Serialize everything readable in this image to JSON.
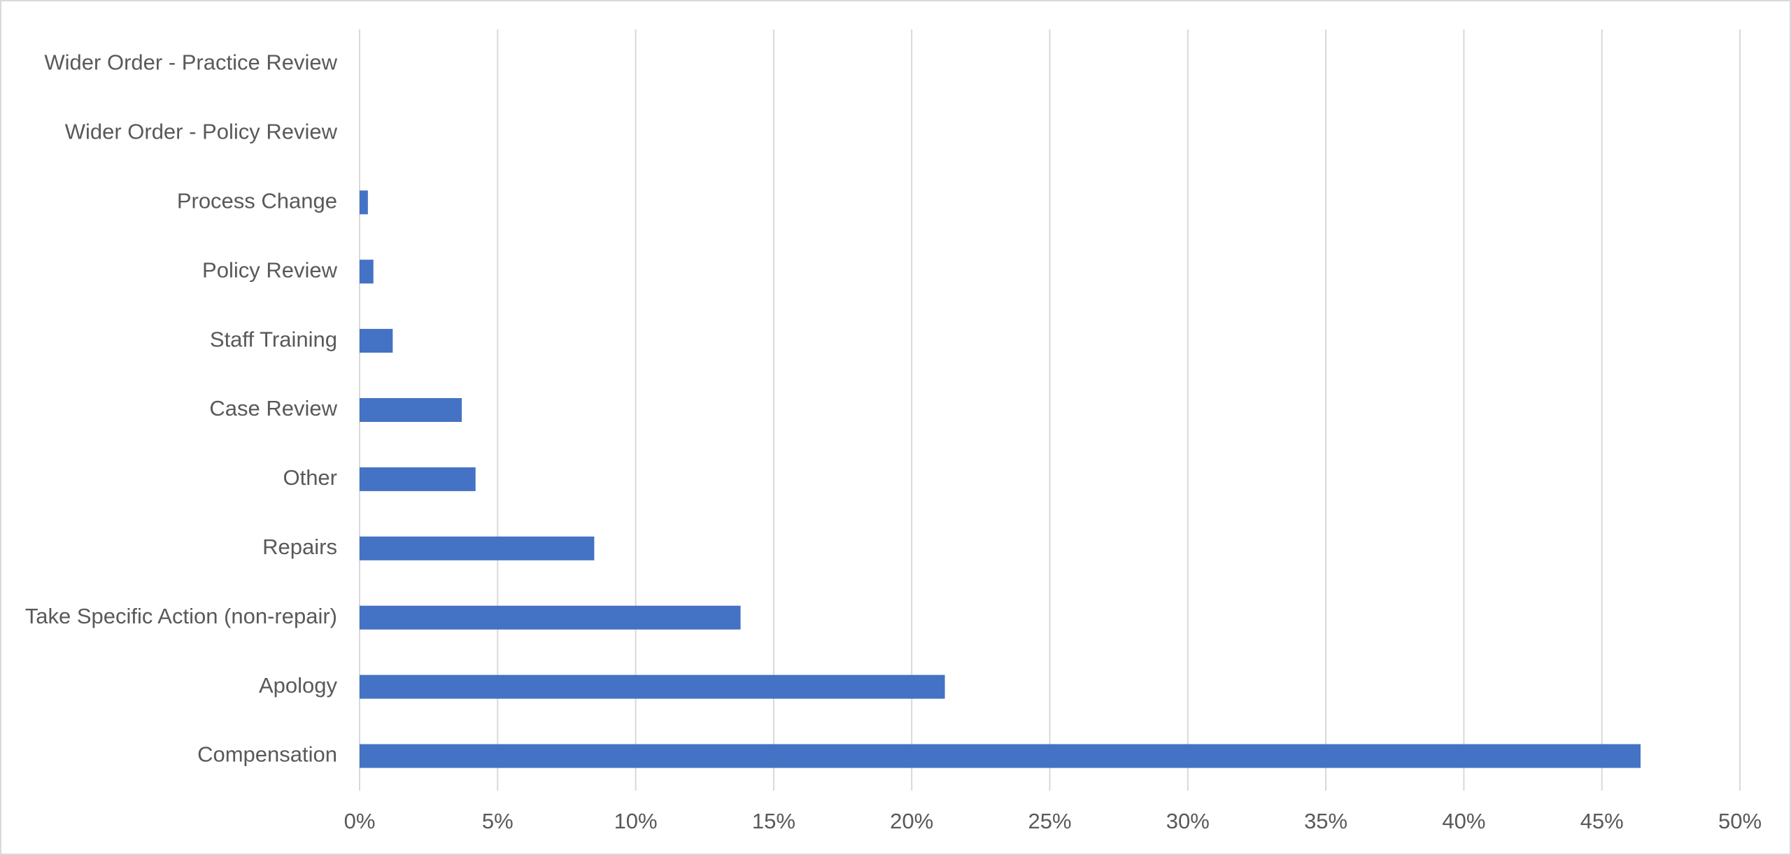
{
  "chart_data": {
    "type": "bar",
    "orientation": "horizontal",
    "categories": [
      "Wider Order - Practice Review",
      "Wider Order - Policy Review",
      "Process Change",
      "Policy Review",
      "Staff Training",
      "Case Review",
      "Other",
      "Repairs",
      "Take Specific Action (non-repair)",
      "Apology",
      "Compensation"
    ],
    "values": [
      0,
      0,
      0.3,
      0.5,
      1.2,
      3.7,
      4.2,
      8.5,
      13.8,
      21.2,
      46.4
    ],
    "color": "#4472c4",
    "xlim": [
      0,
      50
    ],
    "xticks": [
      {
        "value": 0,
        "label": "0%"
      },
      {
        "value": 5,
        "label": "5%"
      },
      {
        "value": 10,
        "label": "10%"
      },
      {
        "value": 15,
        "label": "15%"
      },
      {
        "value": 20,
        "label": "20%"
      },
      {
        "value": 25,
        "label": "25%"
      },
      {
        "value": 30,
        "label": "30%"
      },
      {
        "value": 35,
        "label": "35%"
      },
      {
        "value": 40,
        "label": "40%"
      },
      {
        "value": 45,
        "label": "45%"
      },
      {
        "value": 50,
        "label": "50%"
      }
    ],
    "grid": true
  }
}
